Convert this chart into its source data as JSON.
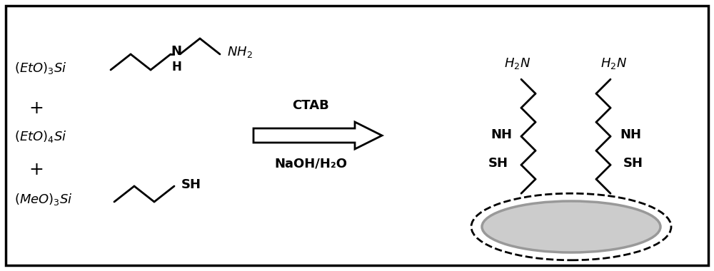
{
  "bg_color": "#ffffff",
  "border_color": "#000000",
  "text_color": "#000000",
  "arrow_label_top": "CTAB",
  "arrow_label_bot": "NaOH/H₂O",
  "reagent1": "(EtO)₃Si",
  "reagent2": "(EtO)₄Si",
  "reagent3": "(MeO)₃Si",
  "figsize": [
    10.0,
    3.8
  ],
  "dpi": 100,
  "xlim": [
    0,
    10
  ],
  "ylim": [
    0,
    3.8
  ]
}
